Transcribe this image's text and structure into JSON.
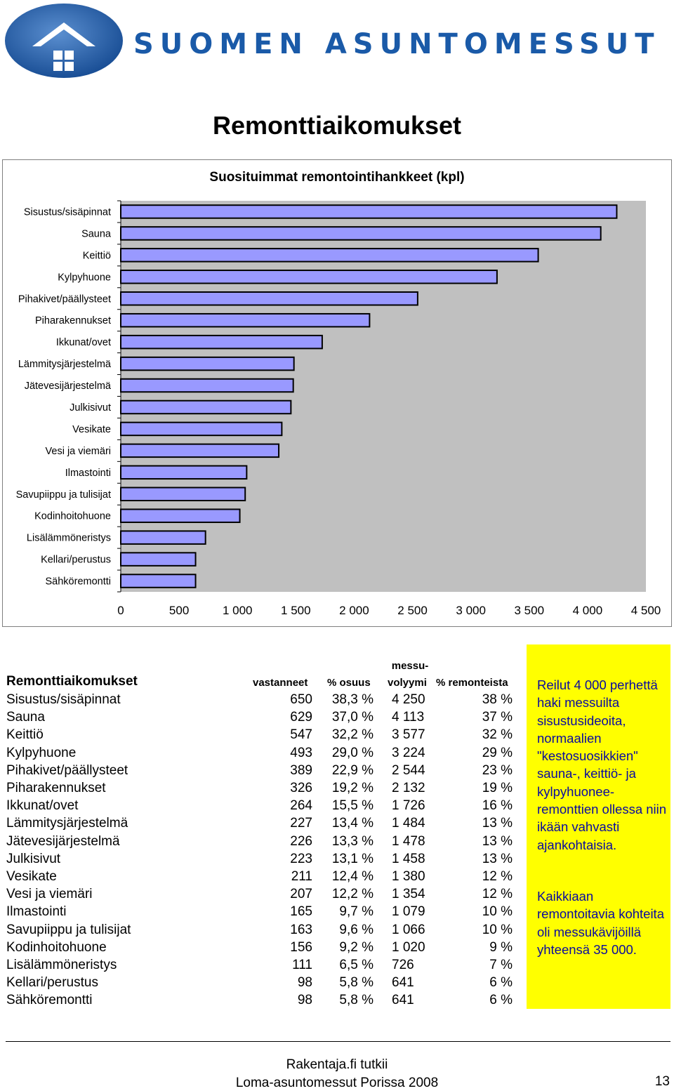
{
  "header": {
    "brand": "SUOMEN ASUNTOMESSUT",
    "page_title": "Remonttiaikomukset",
    "logo_icon": "house-logo-icon",
    "brand_color": "#1a5aa8"
  },
  "chart_data": {
    "type": "bar",
    "orientation": "horizontal",
    "title": "Suosituimmat remontointihankkeet (kpl)",
    "categories": [
      "Sisustus/sisäpinnat",
      "Sauna",
      "Keittiö",
      "Kylpyhuone",
      "Pihakivet/päällysteet",
      "Piharakennukset",
      "Ikkunat/ovet",
      "Lämmitysjärjestelmä",
      "Jätevesijärjestelmä",
      "Julkisivut",
      "Vesikate",
      "Vesi ja viemäri",
      "Ilmastointi",
      "Savupiippu ja tulisijat",
      "Kodinhoitohuone",
      "Lisälämmöneristys",
      "Kellari/perustus",
      "Sähköremontti"
    ],
    "values": [
      4250,
      4113,
      3577,
      3224,
      2544,
      2132,
      1726,
      1484,
      1478,
      1458,
      1380,
      1354,
      1079,
      1066,
      1020,
      726,
      641,
      641
    ],
    "xlim": [
      0,
      4500
    ],
    "xticks": [
      0,
      500,
      1000,
      1500,
      2000,
      2500,
      3000,
      3500,
      4000,
      4500
    ],
    "xtick_labels": [
      "0",
      "500",
      "1 000",
      "1 500",
      "2 000",
      "2 500",
      "3 000",
      "3 500",
      "4 000",
      "4 500"
    ],
    "xlabel": "",
    "ylabel": "",
    "colors": {
      "bar": "#9999ff",
      "plot_bg": "#c0c0c0"
    }
  },
  "table": {
    "headers": {
      "name": "Remonttiaikomukset",
      "responses": "vastanneet",
      "share": "% osuus",
      "visitors_line1": "messu-",
      "visitors_line2": "volyymi",
      "renovators": "% remonteista"
    },
    "rows": [
      {
        "name": "Sisustus/sisäpinnat",
        "n": "650",
        "p": "38,3 %",
        "v": "4 250",
        "r": "38 %"
      },
      {
        "name": "Sauna",
        "n": "629",
        "p": "37,0 %",
        "v": "4 113",
        "r": "37 %"
      },
      {
        "name": "Keittiö",
        "n": "547",
        "p": "32,2 %",
        "v": "3 577",
        "r": "32 %"
      },
      {
        "name": "Kylpyhuone",
        "n": "493",
        "p": "29,0 %",
        "v": "3 224",
        "r": "29 %"
      },
      {
        "name": "Pihakivet/päällysteet",
        "n": "389",
        "p": "22,9 %",
        "v": "2 544",
        "r": "23 %"
      },
      {
        "name": "Piharakennukset",
        "n": "326",
        "p": "19,2 %",
        "v": "2 132",
        "r": "19 %"
      },
      {
        "name": "Ikkunat/ovet",
        "n": "264",
        "p": "15,5 %",
        "v": "1 726",
        "r": "16 %"
      },
      {
        "name": "Lämmitysjärjestelmä",
        "n": "227",
        "p": "13,4 %",
        "v": "1 484",
        "r": "13 %"
      },
      {
        "name": "Jätevesijärjestelmä",
        "n": "226",
        "p": "13,3 %",
        "v": "1 478",
        "r": "13 %"
      },
      {
        "name": "Julkisivut",
        "n": "223",
        "p": "13,1 %",
        "v": "1 458",
        "r": "13 %"
      },
      {
        "name": "Vesikate",
        "n": "211",
        "p": "12,4 %",
        "v": "1 380",
        "r": "12 %"
      },
      {
        "name": "Vesi ja viemäri",
        "n": "207",
        "p": "12,2 %",
        "v": "1 354",
        "r": "12 %"
      },
      {
        "name": "Ilmastointi",
        "n": "165",
        "p": "9,7 %",
        "v": "1 079",
        "r": "10 %"
      },
      {
        "name": "Savupiippu ja tulisijat",
        "n": "163",
        "p": "9,6 %",
        "v": "1 066",
        "r": "10 %"
      },
      {
        "name": "Kodinhoitohuone",
        "n": "156",
        "p": "9,2 %",
        "v": "1 020",
        "r": "9 %"
      },
      {
        "name": "Lisälämmöneristys",
        "n": "111",
        "p": "6,5 %",
        "v": "726",
        "r": "7 %"
      },
      {
        "name": "Kellari/perustus",
        "n": "98",
        "p": "5,8 %",
        "v": "641",
        "r": "6 %"
      },
      {
        "name": "Sähköremontti",
        "n": "98",
        "p": "5,8 %",
        "v": "641",
        "r": "6 %"
      }
    ]
  },
  "note": {
    "paragraph1": "Reilut 4 000 perhettä haki messuilta sisustusideoita, normaalien \"kestosuosikkien\" sauna-, keittiö- ja kylpyhuonee-remonttien ollessa niin ikään vahvasti ajankohtaisia.",
    "paragraph2": "Kaikkiaan remontoitavia kohteita oli messukävijöillä yhteensä 35 000.",
    "background": "#ffff00",
    "text_color": "#0a0aa0"
  },
  "footer": {
    "line1": "Rakentaja.fi tutkii",
    "line2": "Loma-asuntomessut Porissa 2008",
    "page_number": "13"
  }
}
